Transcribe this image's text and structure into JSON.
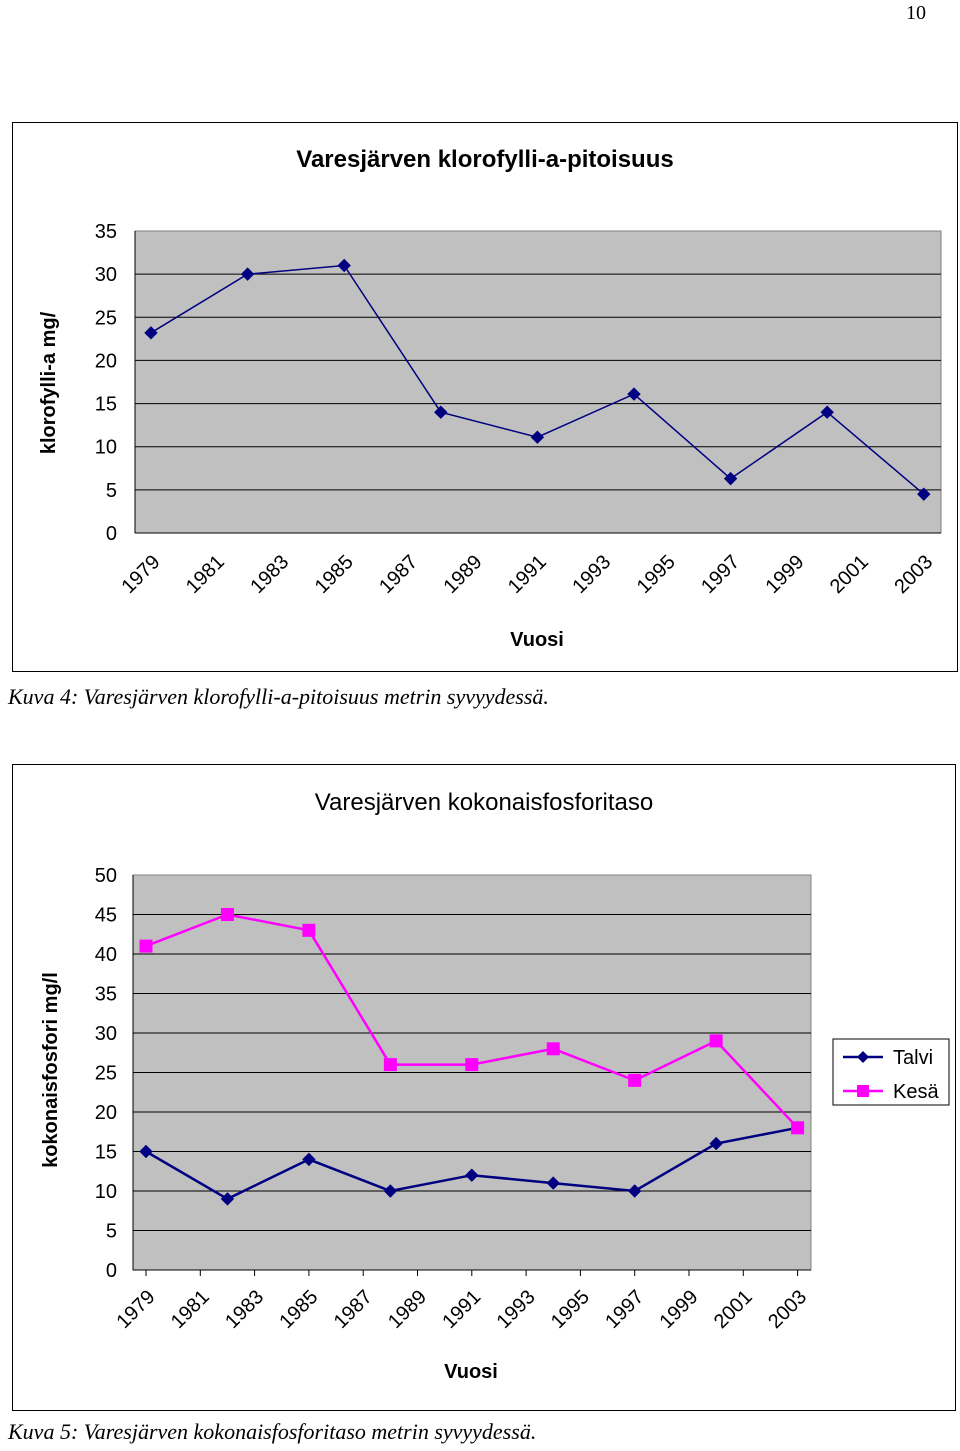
{
  "page": {
    "number": "10"
  },
  "captions": {
    "fig4": "Kuva 4: Varesjärven klorofylli-a-pitoisuus metrin syvyydessä.",
    "fig5": "Kuva 5: Varesjärven kokonaisfosforitaso metrin syvyydessä."
  },
  "colors": {
    "plot_bg": "#c0c0c0",
    "talvi": "#000080",
    "kesa": "#ff00ff",
    "gridline": "#000000"
  },
  "chart_data": [
    {
      "type": "line",
      "title": "Varesjärven klorofylli-a-pitoisuus",
      "xlabel": "Vuosi",
      "ylabel": "klorofylli-a mg/",
      "ylim": [
        0,
        35
      ],
      "yticks": [
        "0",
        "5",
        "10",
        "15",
        "20",
        "25",
        "30",
        "35"
      ],
      "xtick_labels": [
        "1979",
        "1981",
        "1983",
        "1985",
        "1987",
        "1989",
        "1991",
        "1993",
        "1995",
        "1997",
        "1999",
        "2001",
        "2003"
      ],
      "grid": true,
      "legend": "none",
      "series": [
        {
          "color": "#000080",
          "marker": "diamond",
          "x": [
            1979,
            1982,
            1985,
            1988,
            1991,
            1994,
            1997,
            2000,
            2003
          ],
          "values": [
            23.2,
            30,
            31,
            14,
            11.1,
            16.1,
            6.3,
            14,
            4.5
          ]
        }
      ]
    },
    {
      "type": "line",
      "title": "Varesjärven kokonaisfosforitaso",
      "xlabel": "Vuosi",
      "ylabel": "kokonaisfosfori mg/l",
      "ylim": [
        0,
        50
      ],
      "yticks": [
        "0",
        "5",
        "10",
        "15",
        "20",
        "25",
        "30",
        "35",
        "40",
        "45",
        "50"
      ],
      "xtick_labels": [
        "1979",
        "1981",
        "1983",
        "1985",
        "1987",
        "1989",
        "1991",
        "1993",
        "1995",
        "1997",
        "1999",
        "2001",
        "2003"
      ],
      "grid": true,
      "legend": "right",
      "series": [
        {
          "name": "Talvi",
          "color": "#000080",
          "marker": "diamond",
          "x": [
            1979,
            1982,
            1985,
            1988,
            1991,
            1994,
            1997,
            2000,
            2003
          ],
          "values": [
            15,
            9,
            14,
            10,
            12,
            11,
            10,
            16,
            18
          ]
        },
        {
          "name": "Kesä",
          "color": "#ff00ff",
          "marker": "square",
          "x": [
            1979,
            1982,
            1985,
            1988,
            1991,
            1994,
            1997,
            2000,
            2003
          ],
          "values": [
            41,
            45,
            43,
            26,
            26,
            28,
            24,
            29,
            18
          ]
        }
      ]
    }
  ]
}
